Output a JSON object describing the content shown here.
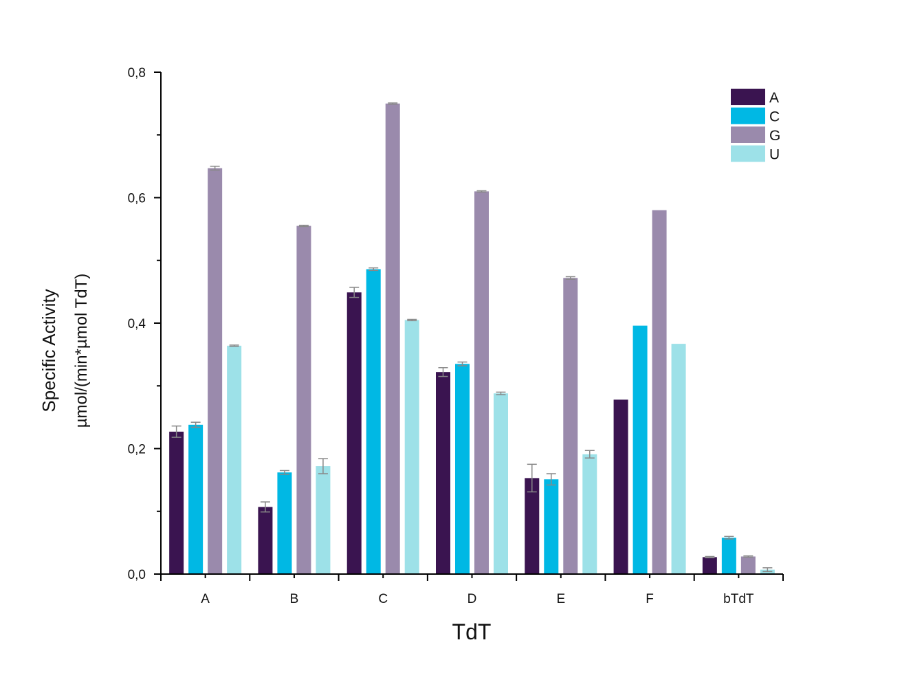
{
  "chart_data": {
    "type": "bar",
    "title": "",
    "xlabel": "TdT",
    "ylabel": "Specific Activity",
    "ylabel_unit": "µmol/(min*µmol TdT)",
    "ylim": [
      0,
      0.8
    ],
    "yticks": [
      "0,0",
      "0,2",
      "0,4",
      "0,6",
      "0,8"
    ],
    "grid": false,
    "legend_position": "top-right",
    "categories": [
      "A",
      "B",
      "C",
      "D",
      "E",
      "F",
      "bTdT"
    ],
    "series": [
      {
        "name": "A",
        "color": "#3a1450",
        "values": [
          0.227,
          0.107,
          0.449,
          0.322,
          0.153,
          0.278,
          0.027
        ],
        "errors": [
          0.009,
          0.008,
          0.008,
          0.007,
          0.022,
          0,
          0.001
        ]
      },
      {
        "name": "C",
        "color": "#00b8e4",
        "values": [
          0.238,
          0.162,
          0.486,
          0.335,
          0.151,
          0.396,
          0.058
        ],
        "errors": [
          0.004,
          0.003,
          0.002,
          0.003,
          0.009,
          0,
          0.002
        ]
      },
      {
        "name": "G",
        "color": "#9a8aac",
        "values": [
          0.647,
          0.555,
          0.75,
          0.61,
          0.472,
          0.58,
          0.028
        ],
        "errors": [
          0.003,
          0.001,
          0.001,
          0.001,
          0.002,
          0,
          0.001
        ]
      },
      {
        "name": "U",
        "color": "#9de1e8",
        "values": [
          0.364,
          0.172,
          0.405,
          0.288,
          0.191,
          0.367,
          0.007
        ],
        "errors": [
          0.001,
          0.012,
          0.001,
          0.002,
          0.006,
          0,
          0.003
        ]
      }
    ]
  }
}
